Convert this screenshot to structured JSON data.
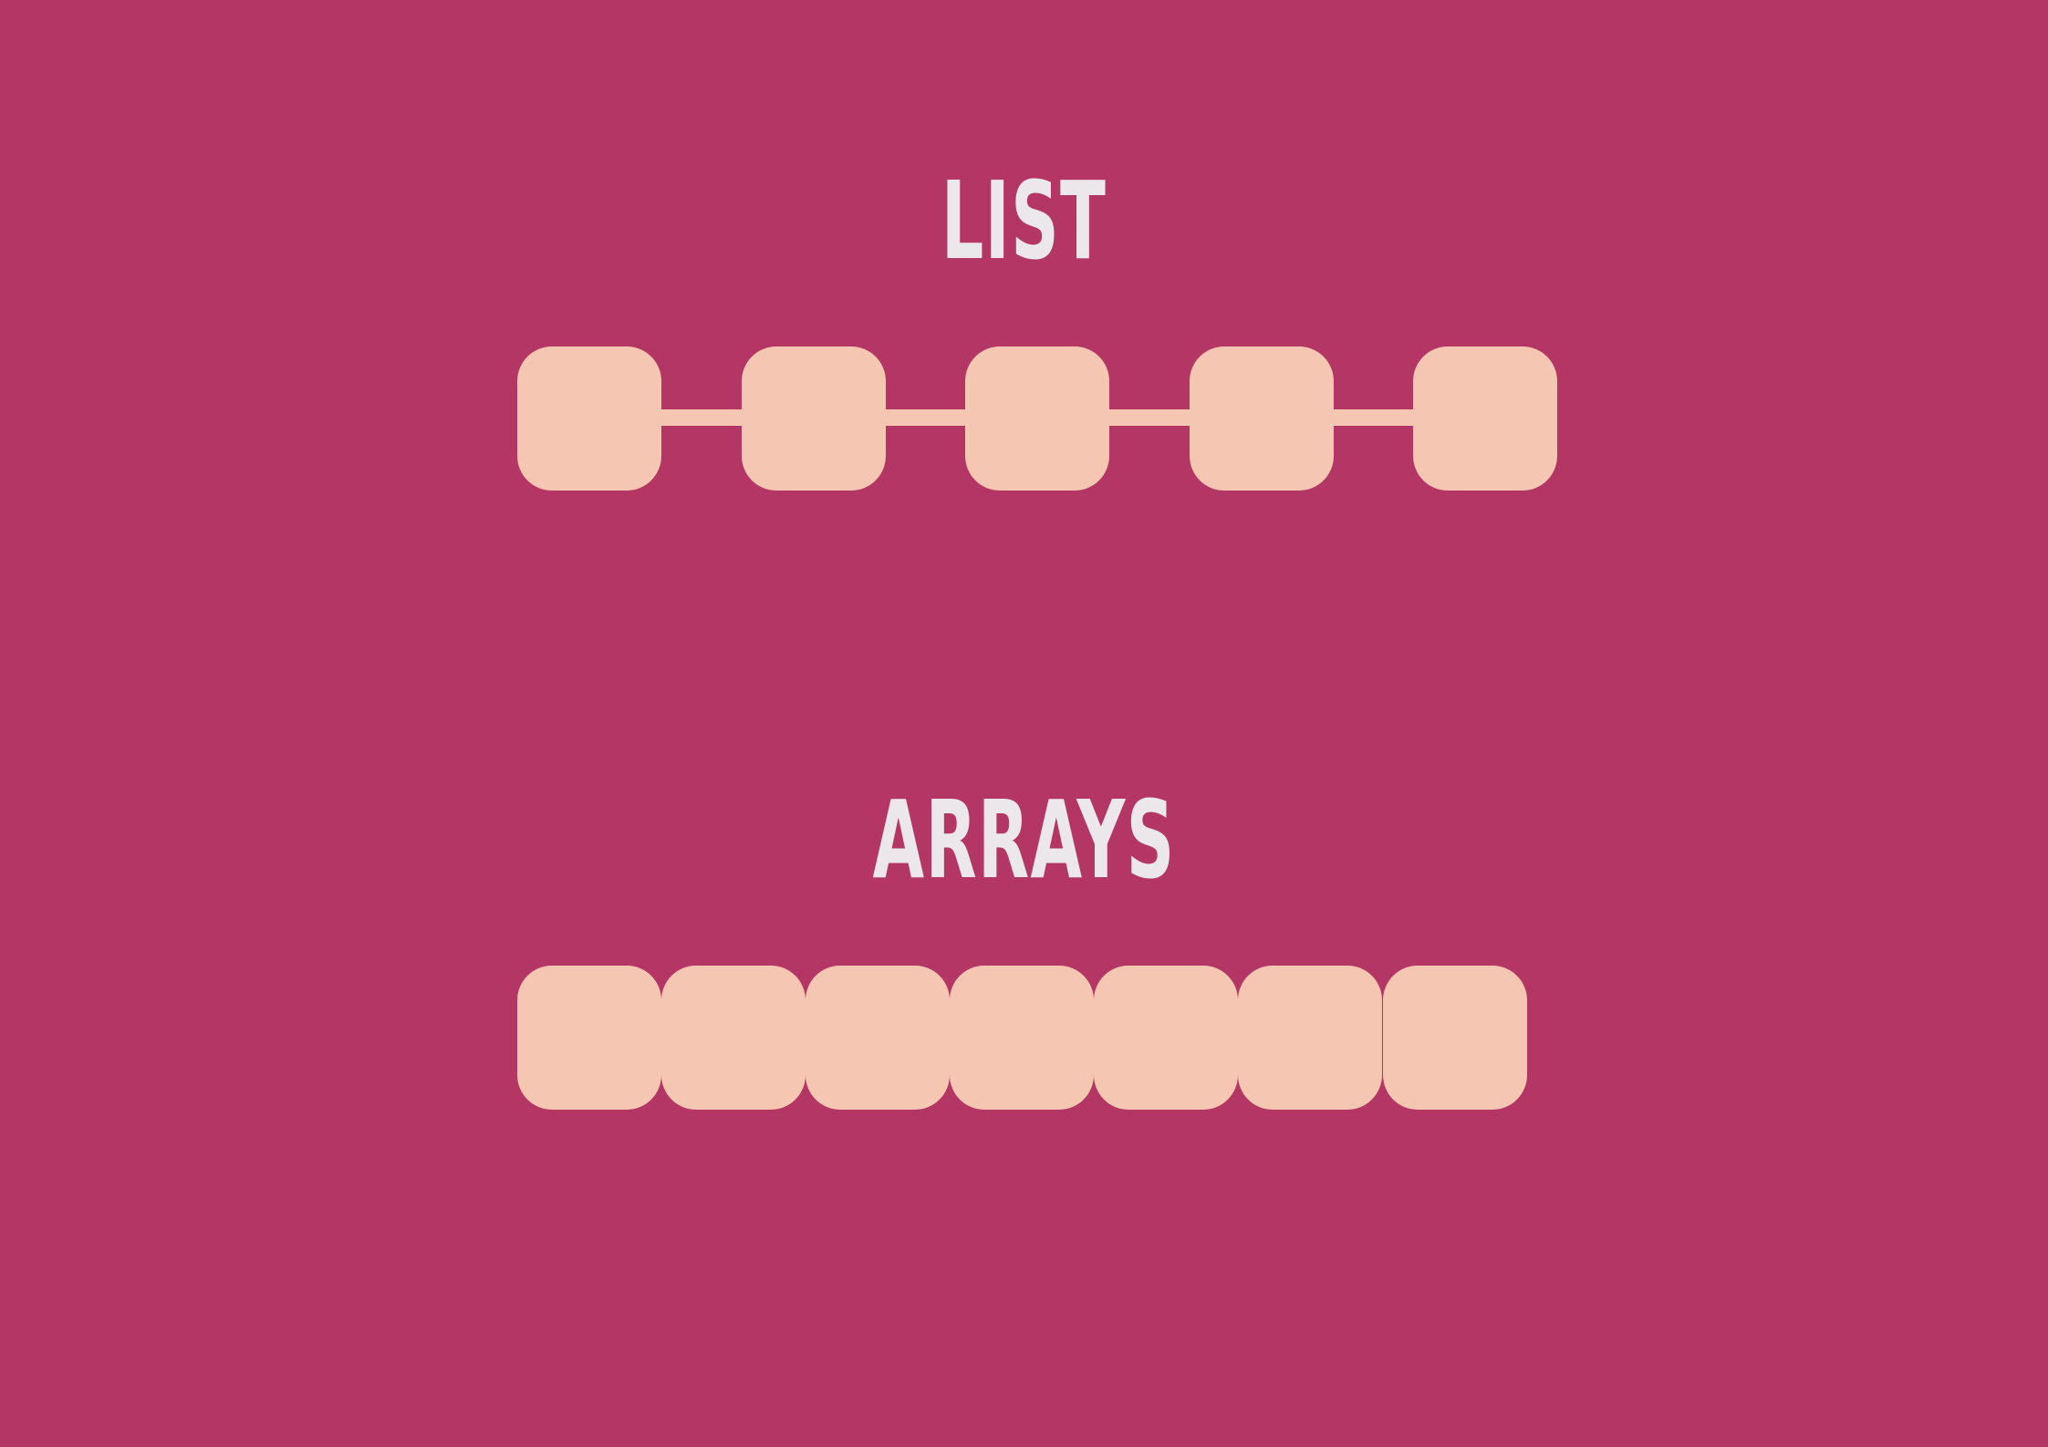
{
  "list_section": {
    "title": "LIST",
    "node_count": 5
  },
  "arrays_section": {
    "title": "ARRAYS",
    "cell_count": 7
  },
  "colors": {
    "background": "#b33664",
    "shape_fill": "#f5c6b1",
    "title_text": "#ebe7ea"
  }
}
